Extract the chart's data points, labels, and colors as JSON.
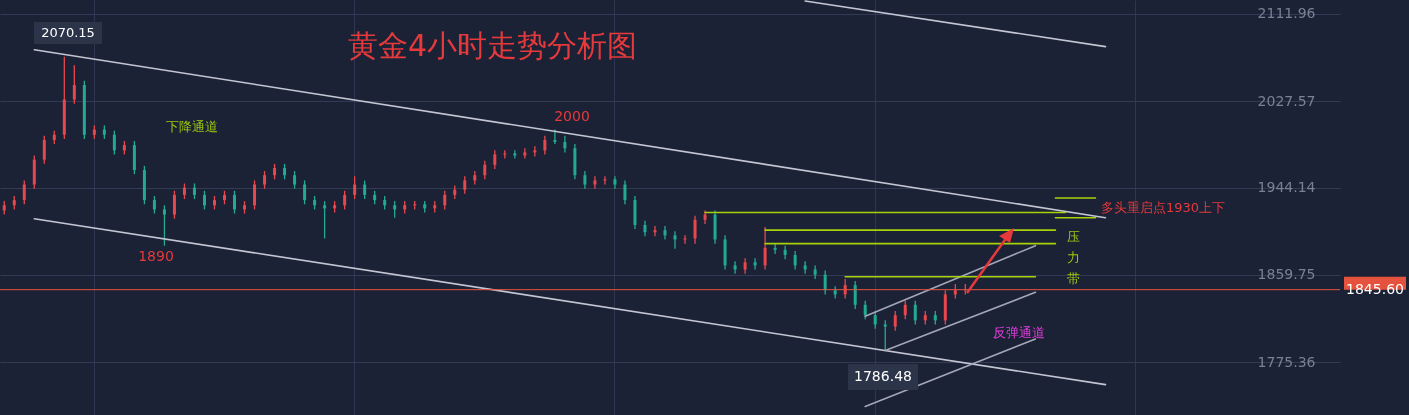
{
  "chart_data": {
    "type": "candlestick",
    "title": "黄金4小时走势分析图",
    "categories": [
      null,
      null,
      null,
      null,
      null,
      null,
      null,
      null,
      null,
      null,
      null,
      null,
      null,
      null,
      null,
      null,
      null,
      null,
      null,
      null,
      null,
      null,
      null,
      null,
      null,
      null,
      null,
      null,
      null,
      null,
      null,
      null,
      null,
      null,
      null,
      null,
      null,
      null,
      null,
      null,
      null,
      null,
      null,
      null,
      null,
      null,
      null,
      null,
      null,
      null,
      null,
      null,
      null,
      null,
      null,
      null,
      null,
      null,
      null,
      null,
      null,
      null,
      null,
      null,
      null,
      null,
      null,
      null,
      null,
      null,
      null,
      null,
      null,
      null,
      null,
      null,
      null,
      null,
      null,
      null,
      null,
      null,
      null,
      null,
      null,
      null,
      null,
      null,
      null,
      null,
      null,
      null,
      null,
      null,
      null,
      null,
      null,
      null,
      null,
      null,
      null,
      null,
      null,
      null,
      null,
      null,
      null,
      null,
      null,
      null,
      null,
      null,
      null,
      null,
      null,
      null,
      null,
      null,
      null,
      null,
      null,
      null,
      null,
      null,
      null,
      null,
      null,
      null,
      null,
      null,
      null,
      null,
      null,
      null
    ],
    "ohlc": [
      [
        1922,
        1931,
        1918,
        1927
      ],
      [
        1927,
        1936,
        1923,
        1932
      ],
      [
        1932,
        1951,
        1928,
        1947
      ],
      [
        1947,
        1975,
        1943,
        1971
      ],
      [
        1971,
        1994,
        1967,
        1990
      ],
      [
        1990,
        1999,
        1986,
        1995
      ],
      [
        1995,
        2070.15,
        1991,
        2029
      ],
      [
        2029,
        2062,
        2025,
        2043
      ],
      [
        2043,
        2047,
        1991,
        1995
      ],
      [
        1995,
        2004,
        1991,
        2000
      ],
      [
        2000,
        2004,
        1991,
        1995
      ],
      [
        1995,
        1999,
        1976,
        1980
      ],
      [
        1980,
        1989,
        1976,
        1985
      ],
      [
        1985,
        1989,
        1957,
        1961
      ],
      [
        1961,
        1965,
        1928,
        1932
      ],
      [
        1932,
        1936,
        1919,
        1923
      ],
      [
        1923,
        1927,
        1888,
        1918
      ],
      [
        1918,
        1941,
        1914,
        1937
      ],
      [
        1937,
        1948,
        1933,
        1944
      ],
      [
        1944,
        1948,
        1933,
        1937
      ],
      [
        1937,
        1941,
        1923,
        1927
      ],
      [
        1927,
        1936,
        1923,
        1932
      ],
      [
        1932,
        1941,
        1928,
        1937
      ],
      [
        1937,
        1941,
        1919,
        1923
      ],
      [
        1923,
        1931,
        1919,
        1927
      ],
      [
        1927,
        1951,
        1923,
        1947
      ],
      [
        1947,
        1960,
        1943,
        1956
      ],
      [
        1956,
        1967,
        1952,
        1963
      ],
      [
        1963,
        1967,
        1952,
        1956
      ],
      [
        1956,
        1960,
        1943,
        1947
      ],
      [
        1947,
        1951,
        1928,
        1932
      ],
      [
        1932,
        1936,
        1923,
        1927
      ],
      [
        1927,
        1931,
        1895,
        1924
      ],
      [
        1924,
        1931,
        1920,
        1927
      ],
      [
        1927,
        1941,
        1923,
        1937
      ],
      [
        1937,
        1955,
        1933,
        1947
      ],
      [
        1947,
        1951,
        1933,
        1937
      ],
      [
        1937,
        1941,
        1928,
        1932
      ],
      [
        1932,
        1936,
        1923,
        1927
      ],
      [
        1927,
        1931,
        1915,
        1923
      ],
      [
        1923,
        1931,
        1919,
        1927
      ],
      [
        1927,
        1931,
        1923,
        1928
      ],
      [
        1928,
        1931,
        1920,
        1924
      ],
      [
        1924,
        1931,
        1920,
        1927
      ],
      [
        1927,
        1941,
        1923,
        1937
      ],
      [
        1937,
        1946,
        1933,
        1942
      ],
      [
        1942,
        1955,
        1938,
        1951
      ],
      [
        1951,
        1960,
        1947,
        1956
      ],
      [
        1956,
        1970,
        1952,
        1966
      ],
      [
        1966,
        1980,
        1962,
        1976
      ],
      [
        1976,
        1980,
        1972,
        1977
      ],
      [
        1977,
        1980,
        1972,
        1975
      ],
      [
        1975,
        1982,
        1972,
        1978
      ],
      [
        1978,
        1984,
        1974,
        1980
      ],
      [
        1980,
        1994,
        1976,
        1990
      ],
      [
        1990,
        2000,
        1986,
        1988
      ],
      [
        1988,
        1994,
        1978,
        1982
      ],
      [
        1982,
        1986,
        1952,
        1956
      ],
      [
        1956,
        1960,
        1943,
        1947
      ],
      [
        1947,
        1955,
        1943,
        1951
      ],
      [
        1951,
        1955,
        1947,
        1952
      ],
      [
        1952,
        1955,
        1943,
        1947
      ],
      [
        1947,
        1951,
        1928,
        1932
      ],
      [
        1932,
        1936,
        1904,
        1908
      ],
      [
        1908,
        1912,
        1897,
        1901
      ],
      [
        1901,
        1907,
        1897,
        1903
      ],
      [
        1903,
        1907,
        1894,
        1898
      ],
      [
        1898,
        1902,
        1885,
        1894
      ],
      [
        1894,
        1898,
        1890,
        1895
      ],
      [
        1895,
        1917,
        1890,
        1913
      ],
      [
        1913,
        1922,
        1909,
        1918
      ],
      [
        1918,
        1922,
        1890,
        1894
      ],
      [
        1894,
        1898,
        1865,
        1869
      ],
      [
        1869,
        1873,
        1861,
        1865
      ],
      [
        1865,
        1876,
        1861,
        1872
      ],
      [
        1872,
        1876,
        1865,
        1869
      ],
      [
        1869,
        1906,
        1865,
        1886
      ],
      [
        1886,
        1890,
        1880,
        1884
      ],
      [
        1884,
        1888,
        1875,
        1879
      ],
      [
        1879,
        1883,
        1865,
        1869
      ],
      [
        1869,
        1873,
        1861,
        1865
      ],
      [
        1865,
        1869,
        1856,
        1860
      ],
      [
        1860,
        1864,
        1841,
        1845
      ],
      [
        1845,
        1849,
        1837,
        1841
      ],
      [
        1841,
        1856,
        1837,
        1850
      ],
      [
        1850,
        1854,
        1827,
        1831
      ],
      [
        1831,
        1835,
        1817,
        1821
      ],
      [
        1821,
        1825,
        1808,
        1812
      ],
      [
        1812,
        1816,
        1786.48,
        1810
      ],
      [
        1810,
        1825,
        1806,
        1821
      ],
      [
        1821,
        1835,
        1817,
        1831
      ],
      [
        1831,
        1835,
        1812,
        1816
      ],
      [
        1816,
        1825,
        1812,
        1821
      ],
      [
        1821,
        1825,
        1812,
        1816
      ],
      [
        1816,
        1845,
        1812,
        1841
      ],
      [
        1841,
        1851,
        1837,
        1845
      ],
      [
        1845,
        1851,
        1841,
        1845.6
      ],
      null,
      null,
      null,
      null,
      null,
      null,
      null,
      null,
      null,
      null,
      null,
      null,
      null,
      null,
      null,
      null,
      null,
      null,
      null,
      null,
      null,
      null,
      null,
      null,
      null,
      null,
      null,
      null,
      null,
      null,
      null,
      null,
      null,
      null,
      null,
      null,
      null
    ],
    "colors": [
      "#e8474e",
      "#e8474e",
      "#e8474e",
      "#e8474e",
      "#e8474e",
      "#e8474e",
      "#e8474e",
      "#e8474e",
      "#22ab94",
      "#e8474e",
      "#22ab94",
      "#22ab94",
      "#e8474e",
      "#22ab94",
      "#22ab94",
      "#22ab94",
      "#22ab94",
      "#e8474e",
      "#e8474e",
      "#22ab94",
      "#22ab94",
      "#e8474e",
      "#e8474e",
      "#22ab94",
      "#e8474e",
      "#e8474e",
      "#e8474e",
      "#e8474e",
      "#22ab94",
      "#22ab94",
      "#22ab94",
      "#22ab94",
      "#22ab94",
      "#e8474e",
      "#e8474e",
      "#e8474e",
      "#22ab94",
      "#22ab94",
      "#22ab94",
      "#22ab94",
      "#e8474e",
      "#e8474e",
      "#22ab94",
      "#e8474e",
      "#e8474e",
      "#e8474e",
      "#e8474e",
      "#e8474e",
      "#e8474e",
      "#e8474e",
      "#e8474e",
      "#22ab94",
      "#e8474e",
      "#e8474e",
      "#e8474e",
      "#22ab94",
      "#22ab94",
      "#22ab94",
      "#22ab94",
      "#e8474e",
      "#e8474e",
      "#22ab94",
      "#22ab94",
      "#22ab94",
      "#22ab94",
      "#e8474e",
      "#22ab94",
      "#22ab94",
      "#e8474e",
      "#e8474e",
      "#e8474e",
      "#22ab94",
      "#22ab94",
      "#22ab94",
      "#e8474e",
      "#22ab94",
      "#e8474e",
      "#22ab94",
      "#22ab94",
      "#22ab94",
      "#22ab94",
      "#22ab94",
      "#22ab94",
      "#22ab94",
      "#e8474e",
      "#22ab94",
      "#22ab94",
      "#22ab94",
      "#22ab94",
      "#e8474e",
      "#e8474e",
      "#22ab94",
      "#e8474e",
      "#22ab94",
      "#e8474e",
      "#e8474e",
      "#e8474e",
      null,
      null,
      null,
      null,
      null,
      null,
      null,
      null,
      null,
      null,
      null,
      null,
      null,
      null,
      null,
      null,
      null,
      null,
      null,
      null,
      null,
      null,
      null,
      null,
      null,
      null,
      null,
      null,
      null,
      null,
      null,
      null,
      null,
      null,
      null,
      null,
      null
    ],
    "series": [
      {
        "type": "line",
        "color": "#c3c6d2",
        "values": [
          null,
          null,
          null,
          2077,
          null,
          null,
          null,
          null,
          null,
          null,
          null,
          null,
          null,
          null,
          null,
          null,
          null,
          null,
          null,
          null,
          null,
          null,
          null,
          null,
          null,
          null,
          null,
          null,
          null,
          null,
          null,
          null,
          null,
          null,
          null,
          null,
          null,
          null,
          null,
          null,
          null,
          null,
          null,
          null,
          null,
          null,
          null,
          null,
          null,
          null,
          null,
          null,
          null,
          null,
          null,
          null,
          null,
          null,
          null,
          null,
          null,
          null,
          null,
          null,
          null,
          null,
          null,
          null,
          null,
          null,
          null,
          null,
          null,
          null,
          null,
          null,
          null,
          null,
          null,
          null,
          null,
          null,
          null,
          null,
          null,
          null,
          null,
          null,
          null,
          null,
          null,
          null,
          null,
          null,
          null,
          null,
          null,
          null,
          null,
          null,
          null,
          null,
          null,
          null,
          null,
          null,
          null,
          null,
          null,
          null,
          1915,
          null,
          null,
          null,
          null,
          null,
          null,
          null,
          null,
          null,
          null,
          null,
          null,
          null,
          null,
          null,
          null,
          null,
          null,
          null,
          null,
          null,
          null,
          null
        ]
      },
      {
        "type": "line",
        "color": "#c3c6d2",
        "values": [
          null,
          null,
          null,
          1914,
          null,
          null,
          null,
          null,
          null,
          null,
          null,
          null,
          null,
          null,
          null,
          null,
          null,
          null,
          null,
          null,
          null,
          null,
          null,
          null,
          null,
          null,
          null,
          null,
          null,
          null,
          null,
          null,
          null,
          null,
          null,
          null,
          null,
          null,
          null,
          null,
          null,
          null,
          null,
          null,
          null,
          null,
          null,
          null,
          null,
          null,
          null,
          null,
          null,
          null,
          null,
          null,
          null,
          null,
          null,
          null,
          null,
          null,
          null,
          null,
          null,
          null,
          null,
          null,
          null,
          null,
          null,
          null,
          null,
          null,
          null,
          null,
          null,
          null,
          null,
          null,
          null,
          null,
          null,
          null,
          null,
          null,
          null,
          null,
          null,
          null,
          null,
          null,
          null,
          null,
          null,
          null,
          null,
          null,
          null,
          null,
          null,
          null,
          null,
          null,
          null,
          null,
          null,
          null,
          null,
          null,
          1754,
          null,
          null,
          null,
          null,
          null,
          null,
          null,
          null,
          null,
          null,
          null,
          null,
          null,
          null,
          null,
          null,
          null,
          null,
          null,
          null,
          null,
          null,
          null
        ]
      },
      {
        "type": "line",
        "color": "#c3c6d2",
        "values": [
          null,
          null,
          null,
          null,
          null,
          null,
          null,
          null,
          null,
          null,
          null,
          null,
          null,
          null,
          null,
          null,
          null,
          null,
          null,
          null,
          null,
          null,
          null,
          null,
          null,
          null,
          null,
          null,
          null,
          null,
          null,
          null,
          null,
          null,
          null,
          null,
          null,
          null,
          null,
          null,
          null,
          null,
          null,
          null,
          null,
          null,
          null,
          null,
          null,
          null,
          null,
          null,
          null,
          null,
          null,
          null,
          null,
          null,
          null,
          null,
          null,
          null,
          null,
          null,
          null,
          null,
          null,
          null,
          null,
          null,
          null,
          null,
          null,
          null,
          null,
          null,
          null,
          null,
          null,
          null,
          2124,
          null,
          null,
          null,
          null,
          null,
          null,
          null,
          null,
          null,
          null,
          null,
          null,
          null,
          null,
          null,
          null,
          null,
          null,
          null,
          null,
          null,
          null,
          null,
          null,
          null,
          null,
          null,
          null,
          null,
          2080,
          null,
          null,
          null,
          null,
          null,
          null,
          null,
          null,
          null,
          null,
          null,
          null,
          null,
          null,
          null,
          null,
          null,
          null,
          null,
          null,
          null,
          null,
          null
        ]
      },
      {
        "type": "line",
        "color": "#a4a7b8",
        "values": [
          null,
          null,
          null,
          null,
          null,
          null,
          null,
          null,
          null,
          null,
          null,
          null,
          null,
          null,
          null,
          null,
          null,
          null,
          null,
          null,
          null,
          null,
          null,
          null,
          null,
          null,
          null,
          null,
          null,
          null,
          null,
          null,
          null,
          null,
          null,
          null,
          null,
          null,
          null,
          null,
          null,
          null,
          null,
          null,
          null,
          null,
          null,
          null,
          null,
          null,
          null,
          null,
          null,
          null,
          null,
          null,
          null,
          null,
          null,
          null,
          null,
          null,
          null,
          null,
          null,
          null,
          null,
          null,
          null,
          null,
          null,
          null,
          null,
          null,
          null,
          null,
          null,
          null,
          null,
          null,
          null,
          null,
          null,
          null,
          null,
          null,
          1820,
          null,
          null,
          null,
          null,
          null,
          null,
          null,
          null,
          null,
          null,
          null,
          null,
          null,
          null,
          null,
          null,
          1888,
          null,
          null,
          null,
          null,
          null,
          null,
          null,
          null,
          null,
          null,
          null,
          null,
          null,
          null,
          null,
          null,
          null,
          null,
          null,
          null,
          null,
          null,
          null,
          null,
          null,
          null,
          null,
          null,
          null,
          null
        ]
      },
      {
        "type": "line",
        "color": "#a4a7b8",
        "values": [
          null,
          null,
          null,
          null,
          null,
          null,
          null,
          null,
          null,
          null,
          null,
          null,
          null,
          null,
          null,
          null,
          null,
          null,
          null,
          null,
          null,
          null,
          null,
          null,
          null,
          null,
          null,
          null,
          null,
          null,
          null,
          null,
          null,
          null,
          null,
          null,
          null,
          null,
          null,
          null,
          null,
          null,
          null,
          null,
          null,
          null,
          null,
          null,
          null,
          null,
          null,
          null,
          null,
          null,
          null,
          null,
          null,
          null,
          null,
          null,
          null,
          null,
          null,
          null,
          null,
          null,
          null,
          null,
          null,
          null,
          null,
          null,
          null,
          null,
          null,
          null,
          null,
          null,
          null,
          null,
          null,
          null,
          null,
          null,
          null,
          null,
          null,
          null,
          1787,
          null,
          null,
          null,
          null,
          null,
          null,
          null,
          null,
          null,
          null,
          null,
          null,
          null,
          null,
          1843,
          null,
          null,
          null,
          null,
          null,
          null,
          null,
          null,
          null,
          null,
          null,
          null,
          null,
          null,
          null,
          null,
          null,
          null,
          null,
          null,
          null,
          null,
          null,
          null,
          null,
          null,
          null,
          null,
          null,
          null
        ]
      },
      {
        "type": "line",
        "color": "#a4a7b8",
        "values": [
          null,
          null,
          null,
          null,
          null,
          null,
          null,
          null,
          null,
          null,
          null,
          null,
          null,
          null,
          null,
          null,
          null,
          null,
          null,
          null,
          null,
          null,
          null,
          null,
          null,
          null,
          null,
          null,
          null,
          null,
          null,
          null,
          null,
          null,
          null,
          null,
          null,
          null,
          null,
          null,
          null,
          null,
          null,
          null,
          null,
          null,
          null,
          null,
          null,
          null,
          null,
          null,
          null,
          null,
          null,
          null,
          null,
          null,
          null,
          null,
          null,
          null,
          null,
          null,
          null,
          null,
          null,
          null,
          null,
          null,
          null,
          null,
          null,
          null,
          null,
          null,
          null,
          null,
          null,
          null,
          null,
          null,
          null,
          null,
          null,
          null,
          1733,
          null,
          null,
          null,
          null,
          null,
          null,
          null,
          null,
          null,
          null,
          null,
          null,
          null,
          null,
          null,
          null,
          1798,
          null,
          null,
          null,
          null,
          null,
          null,
          null,
          null,
          null,
          null,
          null,
          null,
          null,
          null,
          null,
          null,
          null,
          null,
          null,
          null,
          null,
          null,
          null,
          null,
          null,
          null,
          null,
          null,
          null,
          null
        ]
      },
      {
        "type": "line",
        "color": "#a6d20a",
        "values": [
          null,
          null,
          null,
          null,
          null,
          null,
          null,
          null,
          null,
          null,
          null,
          null,
          null,
          null,
          null,
          null,
          null,
          null,
          null,
          null,
          null,
          null,
          null,
          null,
          null,
          null,
          null,
          null,
          null,
          null,
          null,
          null,
          null,
          null,
          null,
          null,
          null,
          null,
          null,
          null,
          null,
          null,
          null,
          null,
          null,
          null,
          null,
          null,
          null,
          null,
          null,
          null,
          null,
          null,
          null,
          null,
          null,
          null,
          null,
          null,
          null,
          null,
          null,
          null,
          null,
          null,
          null,
          null,
          null,
          null,
          1920,
          null,
          null,
          null,
          null,
          null,
          null,
          null,
          null,
          null,
          null,
          null,
          null,
          null,
          null,
          null,
          null,
          null,
          null,
          null,
          null,
          null,
          null,
          null,
          null,
          null,
          null,
          null,
          null,
          null,
          null,
          null,
          null,
          null,
          null,
          null,
          1920,
          null,
          null,
          null,
          null,
          null,
          null,
          null,
          null,
          null,
          null,
          null,
          null,
          null,
          null,
          null,
          null,
          null,
          null,
          null,
          null,
          null,
          null,
          null,
          null,
          null,
          null,
          null
        ]
      },
      {
        "type": "line",
        "color": "#a6d20a",
        "values": [
          null,
          null,
          null,
          null,
          null,
          null,
          null,
          null,
          null,
          null,
          null,
          null,
          null,
          null,
          null,
          null,
          null,
          null,
          null,
          null,
          null,
          null,
          null,
          null,
          null,
          null,
          null,
          null,
          null,
          null,
          null,
          null,
          null,
          null,
          null,
          null,
          null,
          null,
          null,
          null,
          null,
          null,
          null,
          null,
          null,
          null,
          null,
          null,
          null,
          null,
          null,
          null,
          null,
          null,
          null,
          null,
          null,
          null,
          null,
          null,
          null,
          null,
          null,
          null,
          null,
          null,
          null,
          null,
          null,
          null,
          null,
          null,
          null,
          null,
          null,
          null,
          null,
          null,
          null,
          null,
          null,
          null,
          null,
          null,
          1858,
          null,
          null,
          null,
          null,
          null,
          null,
          null,
          null,
          null,
          null,
          null,
          null,
          null,
          null,
          null,
          null,
          null,
          null,
          1858,
          null,
          null,
          null,
          null,
          null,
          null,
          null,
          null,
          null,
          null,
          null,
          null,
          null,
          null,
          null,
          null,
          null,
          null,
          null,
          null,
          null,
          null,
          null,
          null,
          null,
          null,
          null,
          null,
          null,
          null
        ]
      },
      {
        "type": "line",
        "color": "#a6d20a",
        "values": [
          null,
          null,
          null,
          null,
          null,
          null,
          null,
          null,
          null,
          null,
          null,
          null,
          null,
          null,
          null,
          null,
          null,
          null,
          null,
          null,
          null,
          null,
          null,
          null,
          null,
          null,
          null,
          null,
          null,
          null,
          null,
          null,
          null,
          null,
          null,
          null,
          null,
          null,
          null,
          null,
          null,
          null,
          null,
          null,
          null,
          null,
          null,
          null,
          null,
          null,
          null,
          null,
          null,
          null,
          null,
          null,
          null,
          null,
          null,
          null,
          null,
          null,
          null,
          null,
          null,
          null,
          null,
          null,
          null,
          null,
          null,
          null,
          null,
          null,
          null,
          null,
          1903,
          null,
          null,
          null,
          null,
          null,
          null,
          null,
          null,
          null,
          null,
          null,
          null,
          null,
          null,
          null,
          null,
          null,
          null,
          null,
          null,
          null,
          null,
          null,
          null,
          null,
          null,
          null,
          null,
          1903,
          null,
          null,
          null,
          null,
          null,
          null,
          null,
          null,
          null,
          null,
          null,
          null,
          null,
          null,
          null,
          null,
          null,
          null,
          null,
          null,
          null,
          null,
          null,
          null,
          null,
          null,
          null,
          null
        ]
      },
      {
        "type": "line",
        "color": "#a6d20a",
        "values": [
          null,
          null,
          null,
          null,
          null,
          null,
          null,
          null,
          null,
          null,
          null,
          null,
          null,
          null,
          null,
          null,
          null,
          null,
          null,
          null,
          null,
          null,
          null,
          null,
          null,
          null,
          null,
          null,
          null,
          null,
          null,
          null,
          null,
          null,
          null,
          null,
          null,
          null,
          null,
          null,
          null,
          null,
          null,
          null,
          null,
          null,
          null,
          null,
          null,
          null,
          null,
          null,
          null,
          null,
          null,
          null,
          null,
          null,
          null,
          null,
          null,
          null,
          null,
          null,
          null,
          null,
          null,
          null,
          null,
          null,
          null,
          null,
          null,
          null,
          null,
          null,
          1890,
          null,
          null,
          null,
          null,
          null,
          null,
          null,
          null,
          null,
          null,
          null,
          null,
          null,
          null,
          null,
          null,
          null,
          null,
          null,
          null,
          null,
          null,
          null,
          null,
          null,
          null,
          null,
          null,
          1890,
          null,
          null,
          null,
          null,
          null,
          null,
          null,
          null,
          null,
          null,
          null,
          null,
          null,
          null,
          null,
          null,
          null,
          null,
          null,
          null,
          null,
          null,
          null,
          null,
          null,
          null,
          null,
          null
        ]
      },
      {
        "type": "line",
        "color": "#a6d20a",
        "values": [
          null,
          null,
          null,
          null,
          null,
          null,
          null,
          null,
          null,
          null,
          null,
          null,
          null,
          null,
          null,
          null,
          null,
          null,
          null,
          null,
          null,
          null,
          null,
          null,
          null,
          null,
          null,
          null,
          null,
          null,
          null,
          null,
          null,
          null,
          null,
          null,
          null,
          null,
          null,
          null,
          null,
          null,
          null,
          null,
          null,
          null,
          null,
          null,
          null,
          null,
          null,
          null,
          null,
          null,
          null,
          null,
          null,
          null,
          null,
          null,
          null,
          null,
          null,
          null,
          null,
          null,
          null,
          null,
          null,
          null,
          null,
          null,
          null,
          null,
          null,
          null,
          null,
          null,
          null,
          null,
          null,
          null,
          null,
          null,
          null,
          null,
          null,
          null,
          null,
          null,
          null,
          null,
          null,
          null,
          null,
          null,
          null,
          null,
          null,
          null,
          null,
          null,
          null,
          null,
          null,
          1934,
          null,
          null,
          null,
          1934,
          null,
          null,
          null,
          null,
          null,
          null,
          null,
          null,
          null,
          null,
          null,
          null,
          null,
          null,
          null,
          null,
          null,
          null,
          null,
          null,
          null,
          null,
          null,
          null
        ]
      },
      {
        "type": "line",
        "color": "#a6d20a",
        "values": [
          null,
          null,
          null,
          null,
          null,
          null,
          null,
          null,
          null,
          null,
          null,
          null,
          null,
          null,
          null,
          null,
          null,
          null,
          null,
          null,
          null,
          null,
          null,
          null,
          null,
          null,
          null,
          null,
          null,
          null,
          null,
          null,
          null,
          null,
          null,
          null,
          null,
          null,
          null,
          null,
          null,
          null,
          null,
          null,
          null,
          null,
          null,
          null,
          null,
          null,
          null,
          null,
          null,
          null,
          null,
          null,
          null,
          null,
          null,
          null,
          null,
          null,
          null,
          null,
          null,
          null,
          null,
          null,
          null,
          null,
          null,
          null,
          null,
          null,
          null,
          null,
          null,
          null,
          null,
          null,
          null,
          null,
          null,
          null,
          null,
          null,
          null,
          null,
          null,
          null,
          null,
          null,
          null,
          null,
          null,
          null,
          null,
          null,
          null,
          null,
          null,
          null,
          null,
          null,
          null,
          1915,
          null,
          null,
          null,
          1915,
          null,
          null,
          null,
          null,
          null,
          null,
          null,
          null,
          null,
          null,
          null,
          null,
          null,
          null,
          null,
          null,
          null,
          null,
          null,
          null,
          null,
          null,
          null,
          null
        ]
      }
    ],
    "ylim": [
      1724.7,
      2125
    ],
    "yticks": [
      1775.36,
      1859.75,
      1944.14,
      2027.57,
      2111.96
    ],
    "ref_lines": [
      {
        "axis": "y",
        "value": 1845.6,
        "label": "1845.60",
        "color": "#e5533f"
      }
    ],
    "annotations": [
      "2070.15",
      "下降通道",
      "2000",
      "1890",
      "多头重启点1930上下",
      "压力带",
      "反弹通道",
      "1786.48"
    ],
    "grid": true,
    "tick_labels": "y"
  }
}
